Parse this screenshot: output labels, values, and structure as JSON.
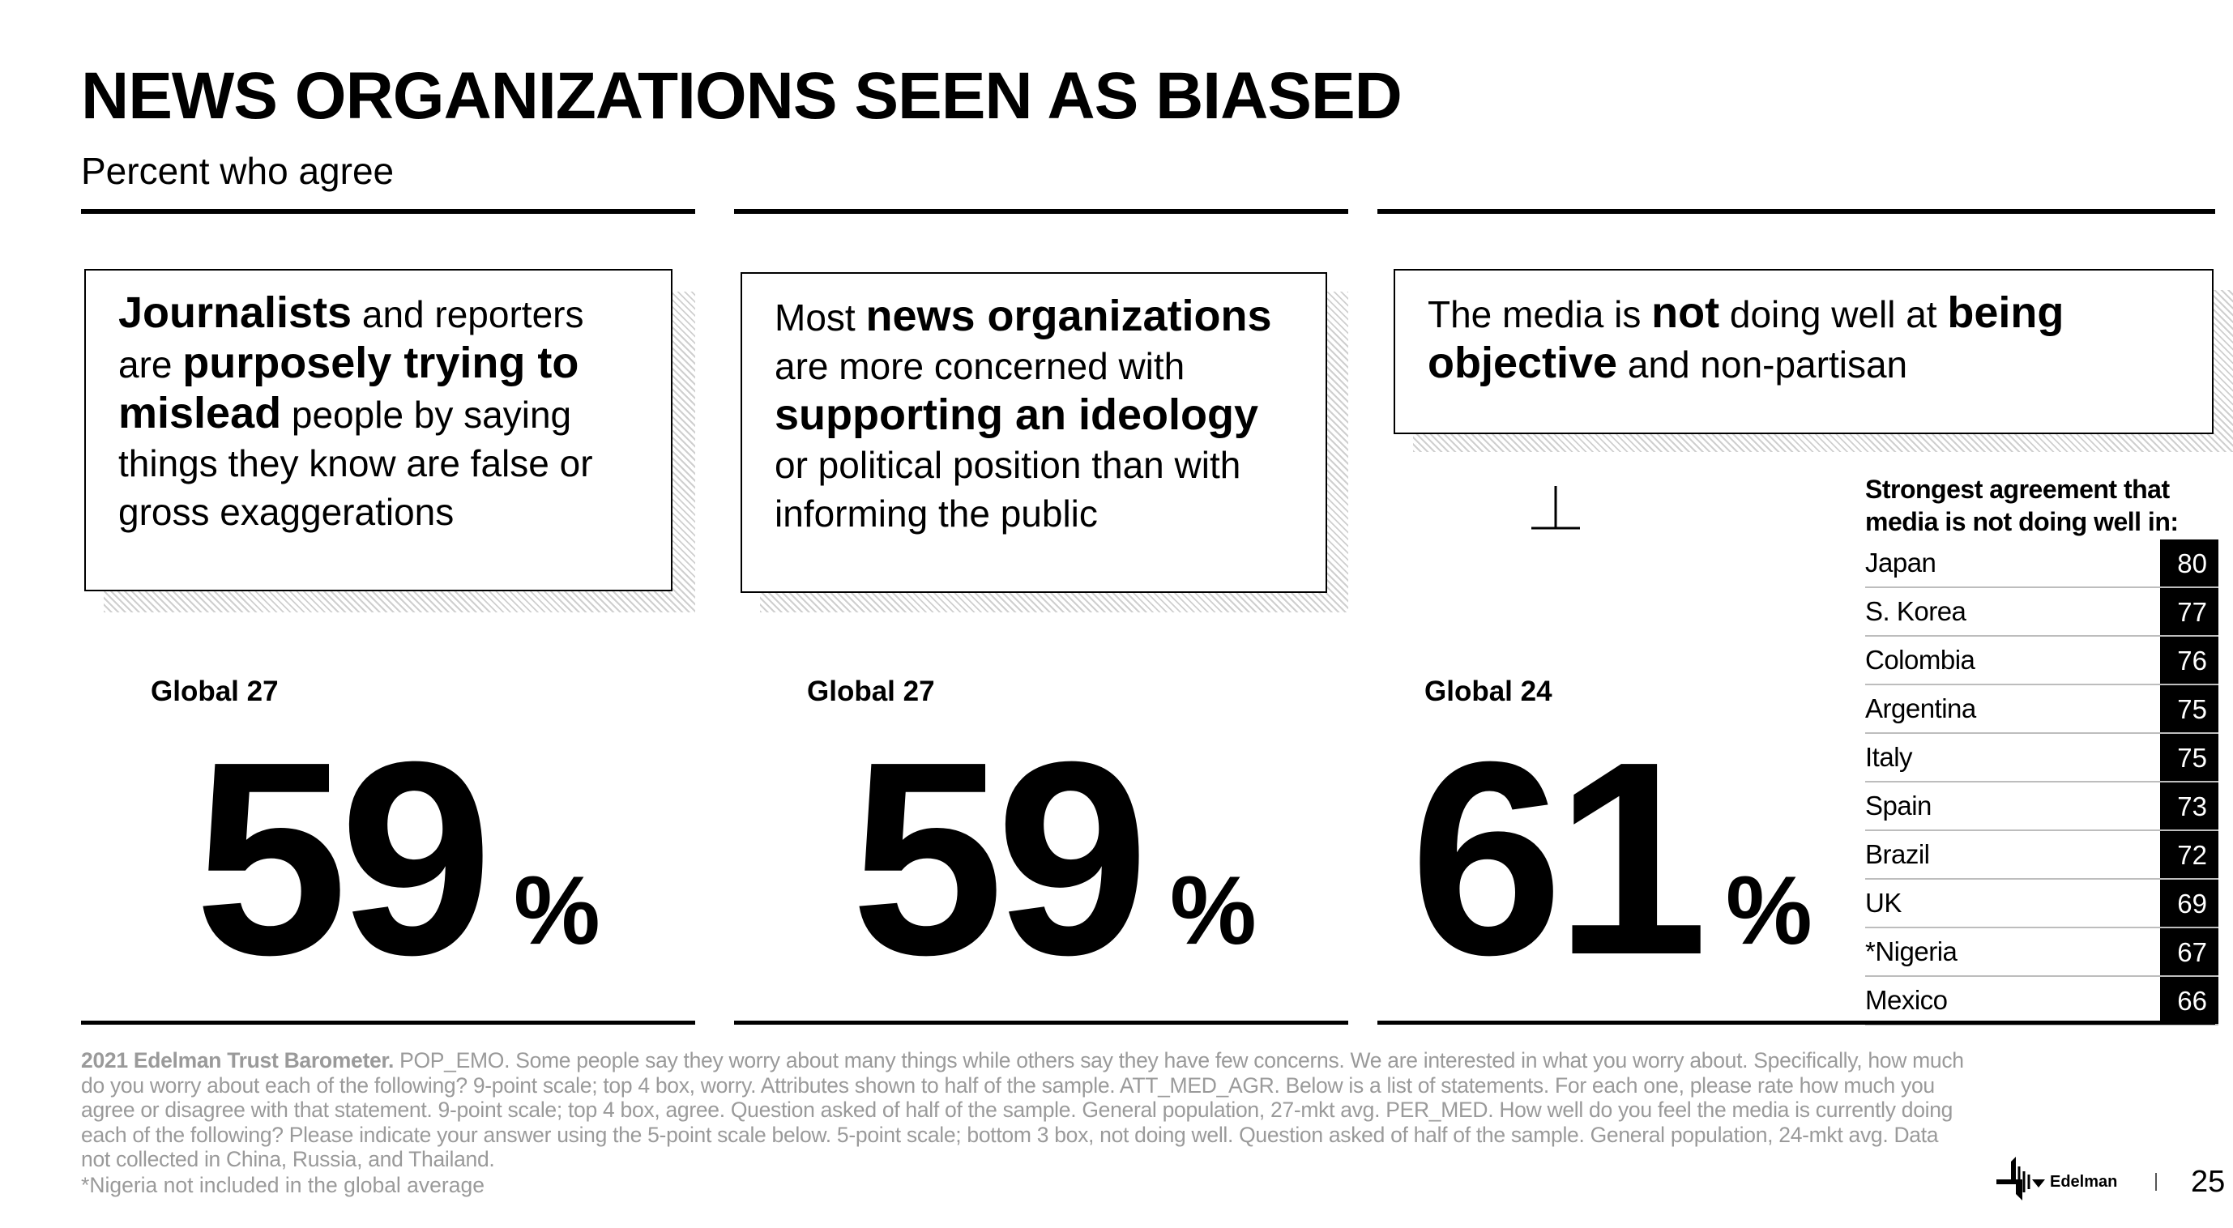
{
  "title": "NEWS ORGANIZATIONS SEEN AS BIASED",
  "subtitle": "Percent who agree",
  "panels": [
    {
      "statement_parts": [
        {
          "t": "Journalists",
          "b": true
        },
        {
          "t": " and reporters are ",
          "b": false
        },
        {
          "t": "purposely trying to mislead",
          "b": true
        },
        {
          "t": " people by saying things they know are false or gross exaggerations",
          "b": false
        }
      ],
      "global_label": "Global 27",
      "value": "59",
      "unit": "%"
    },
    {
      "statement_parts": [
        {
          "t": "Most ",
          "b": false
        },
        {
          "t": "news organizations",
          "b": true
        },
        {
          "t": " are more concerned with ",
          "b": false
        },
        {
          "t": "supporting an ideology",
          "b": true
        },
        {
          "t": " or political position than with informing the public",
          "b": false
        }
      ],
      "global_label": "Global 27",
      "value": "59",
      "unit": "%"
    },
    {
      "statement_parts": [
        {
          "t": "The media is ",
          "b": false
        },
        {
          "t": "not",
          "b": true
        },
        {
          "t": " doing well at ",
          "b": false
        },
        {
          "t": "being objective",
          "b": true
        },
        {
          "t": " and non-partisan",
          "b": false
        }
      ],
      "global_label": "Global 24",
      "value": "61",
      "unit": "%",
      "table_header": "Strongest agreement that media is not doing well in:",
      "table": [
        {
          "country": "Japan",
          "value": "80"
        },
        {
          "country": "S. Korea",
          "value": "77"
        },
        {
          "country": "Colombia",
          "value": "76"
        },
        {
          "country": "Argentina",
          "value": "75"
        },
        {
          "country": "Italy",
          "value": "75"
        },
        {
          "country": "Spain",
          "value": "73"
        },
        {
          "country": "Brazil",
          "value": "72"
        },
        {
          "country": "UK",
          "value": "69"
        },
        {
          "country": "*Nigeria",
          "value": "67"
        },
        {
          "country": "Mexico",
          "value": "66"
        }
      ]
    }
  ],
  "footnote_bold": "2021 Edelman Trust Barometer.",
  "footnote_text": " POP_EMO. Some people say they worry about many things while others say they have few concerns. We are interested in what you worry about. Specifically, how much do you worry about each of the following? 9-point scale; top 4 box, worry. Attributes shown to half of the sample. ATT_MED_AGR. Below is a list of statements. For each one, please rate how much you agree or disagree with that statement. 9-point scale; top 4 box, agree. Question asked of half of the sample. General population, 27-mkt avg. PER_MED. How well do you feel the media is currently doing each of the following? Please indicate your answer using the 5-point scale below. 5-point scale; bottom 3 box, not doing well. Question asked of half of the sample. General population, 24-mkt avg. Data not collected in China, Russia, and Thailand.",
  "footnote_note": "*Nigeria not included in the global average",
  "logo_text": "Edelman",
  "page_number": "25"
}
